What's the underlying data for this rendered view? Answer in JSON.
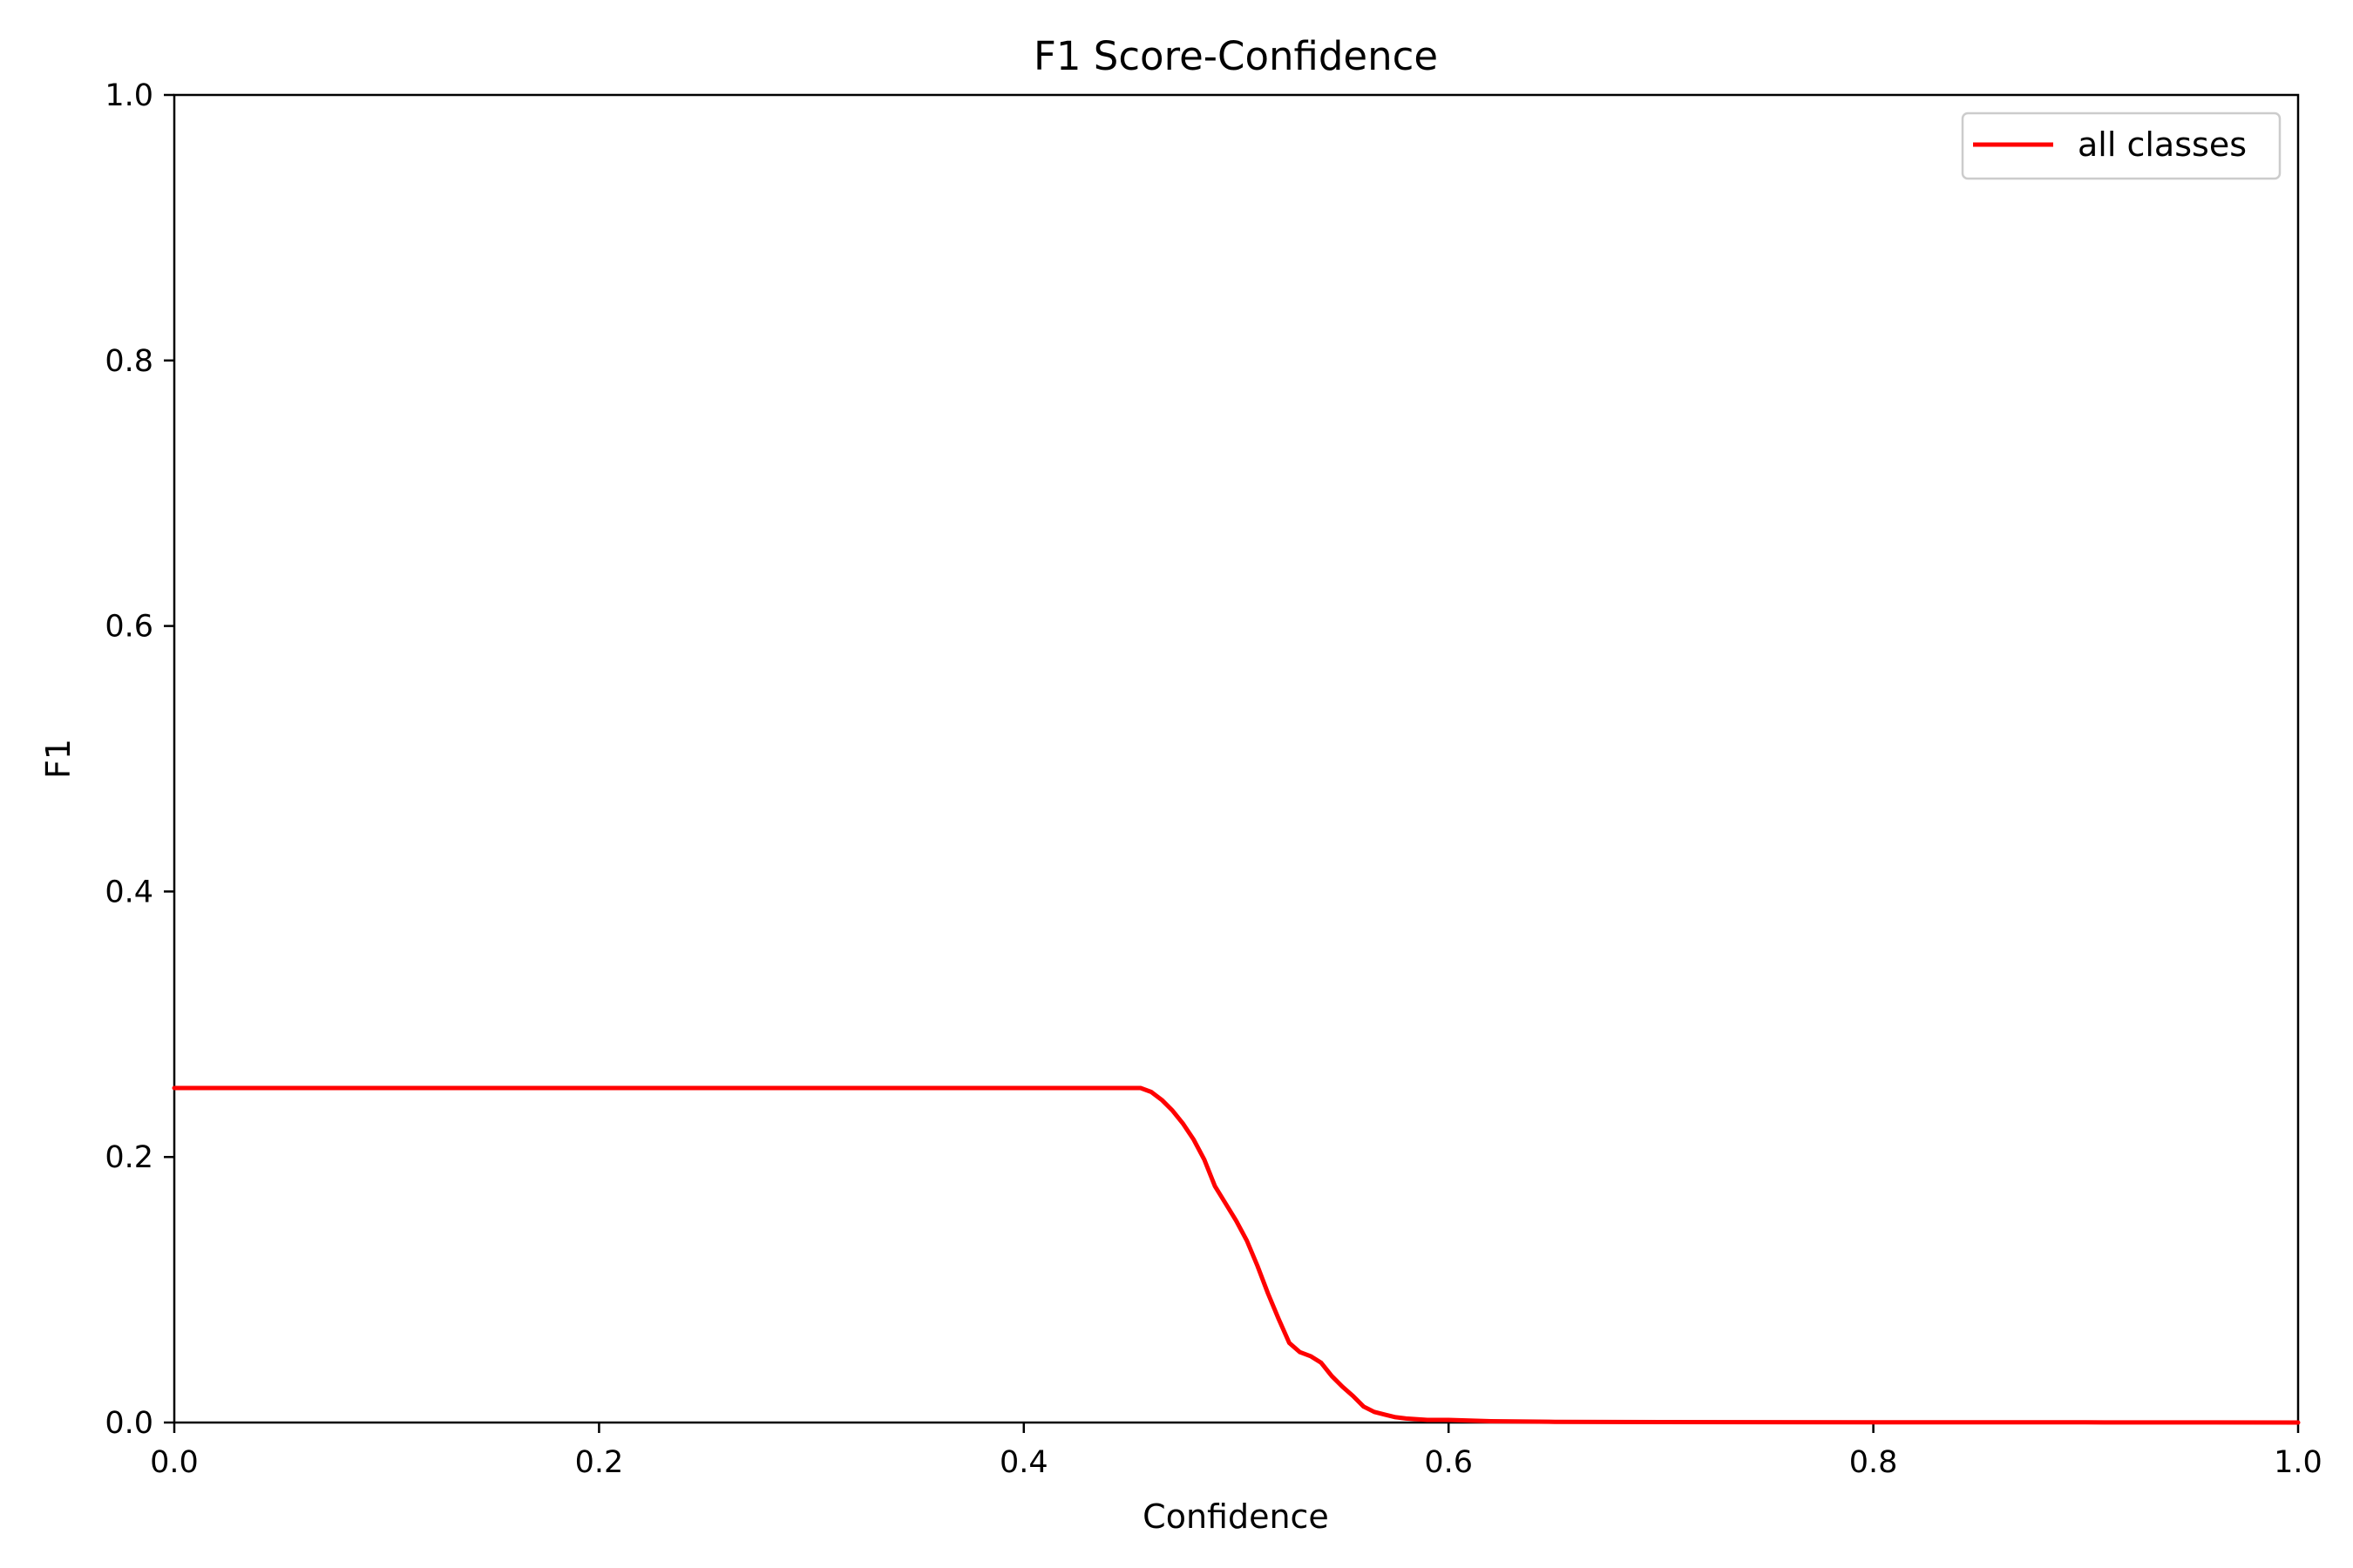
{
  "chart_data": {
    "type": "line",
    "title": "F1 Score-Confidence",
    "xlabel": "Confidence",
    "ylabel": "F1",
    "xlim": [
      0,
      1
    ],
    "ylim": [
      0,
      1
    ],
    "xticks": [
      "0.0",
      "0.2",
      "0.4",
      "0.6",
      "0.8",
      "1.0"
    ],
    "yticks": [
      "0.0",
      "0.2",
      "0.4",
      "0.6",
      "0.8",
      "1.0"
    ],
    "grid": false,
    "legend_position": "top-right",
    "series": [
      {
        "name": "all classes",
        "color": "#ff0000",
        "x": [
          0.0,
          0.1,
          0.2,
          0.3,
          0.4,
          0.45,
          0.455,
          0.46,
          0.465,
          0.47,
          0.475,
          0.48,
          0.485,
          0.49,
          0.495,
          0.5,
          0.505,
          0.51,
          0.515,
          0.52,
          0.525,
          0.53,
          0.535,
          0.54,
          0.545,
          0.55,
          0.555,
          0.56,
          0.565,
          0.57,
          0.575,
          0.58,
          0.59,
          0.6,
          0.62,
          0.65,
          0.7,
          0.8,
          0.9,
          1.0
        ],
        "y": [
          0.252,
          0.252,
          0.252,
          0.252,
          0.252,
          0.252,
          0.252,
          0.249,
          0.243,
          0.235,
          0.225,
          0.213,
          0.198,
          0.178,
          0.165,
          0.152,
          0.137,
          0.118,
          0.097,
          0.078,
          0.06,
          0.053,
          0.05,
          0.045,
          0.035,
          0.027,
          0.02,
          0.012,
          0.008,
          0.006,
          0.004,
          0.003,
          0.002,
          0.002,
          0.001,
          0.0005,
          0.0003,
          0.0002,
          0.0001,
          0.0
        ]
      }
    ]
  }
}
